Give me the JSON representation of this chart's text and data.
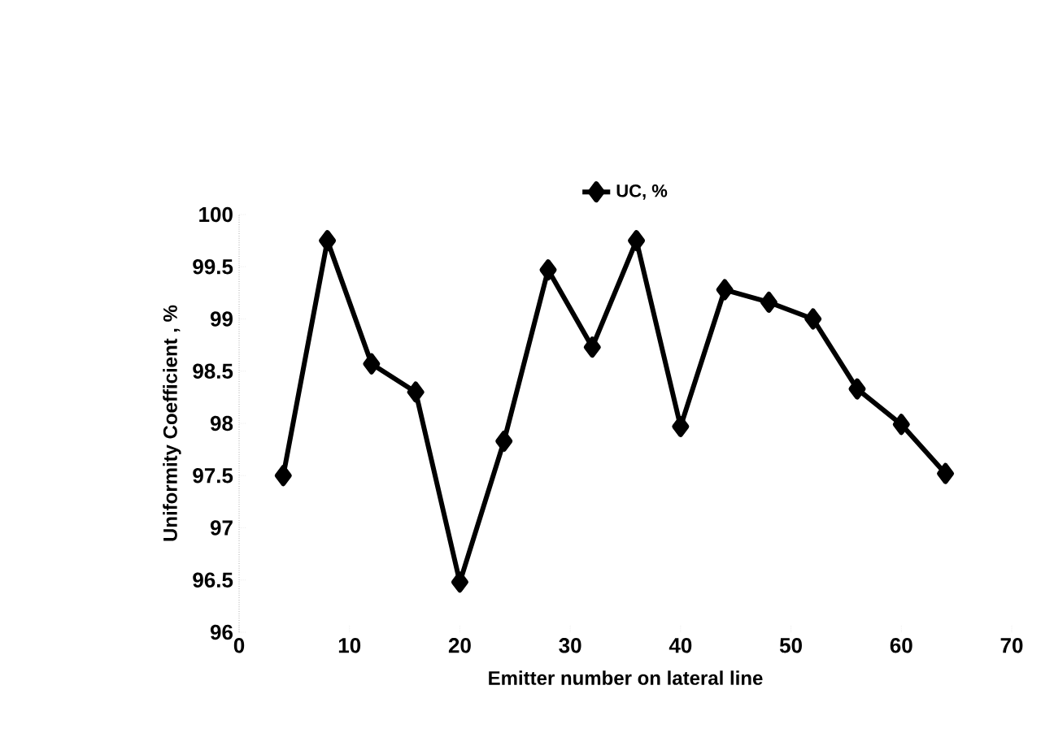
{
  "chart_data": {
    "type": "line",
    "xlabel": "Emitter number on lateral line",
    "ylabel": "Uniformity Coefficient , %",
    "x": [
      4,
      8,
      12,
      16,
      20,
      24,
      28,
      32,
      36,
      40,
      44,
      48,
      52,
      56,
      60,
      64
    ],
    "series": [
      {
        "name": "UC, %",
        "color": "#000000",
        "values": [
          97.5,
          99.75,
          98.57,
          98.3,
          96.48,
          97.83,
          99.47,
          98.73,
          99.75,
          97.97,
          99.28,
          99.16,
          99.0,
          98.33,
          97.99,
          97.52
        ]
      }
    ],
    "xlim": [
      0,
      70
    ],
    "xticks": [
      0,
      10,
      20,
      30,
      40,
      50,
      60,
      70
    ],
    "ylim": [
      96,
      100
    ],
    "yticks": [
      96,
      96.5,
      97,
      97.5,
      98,
      98.5,
      99,
      99.5,
      100
    ],
    "legend": "top",
    "marker": "diamond",
    "line_style": "solid",
    "grid": false
  }
}
